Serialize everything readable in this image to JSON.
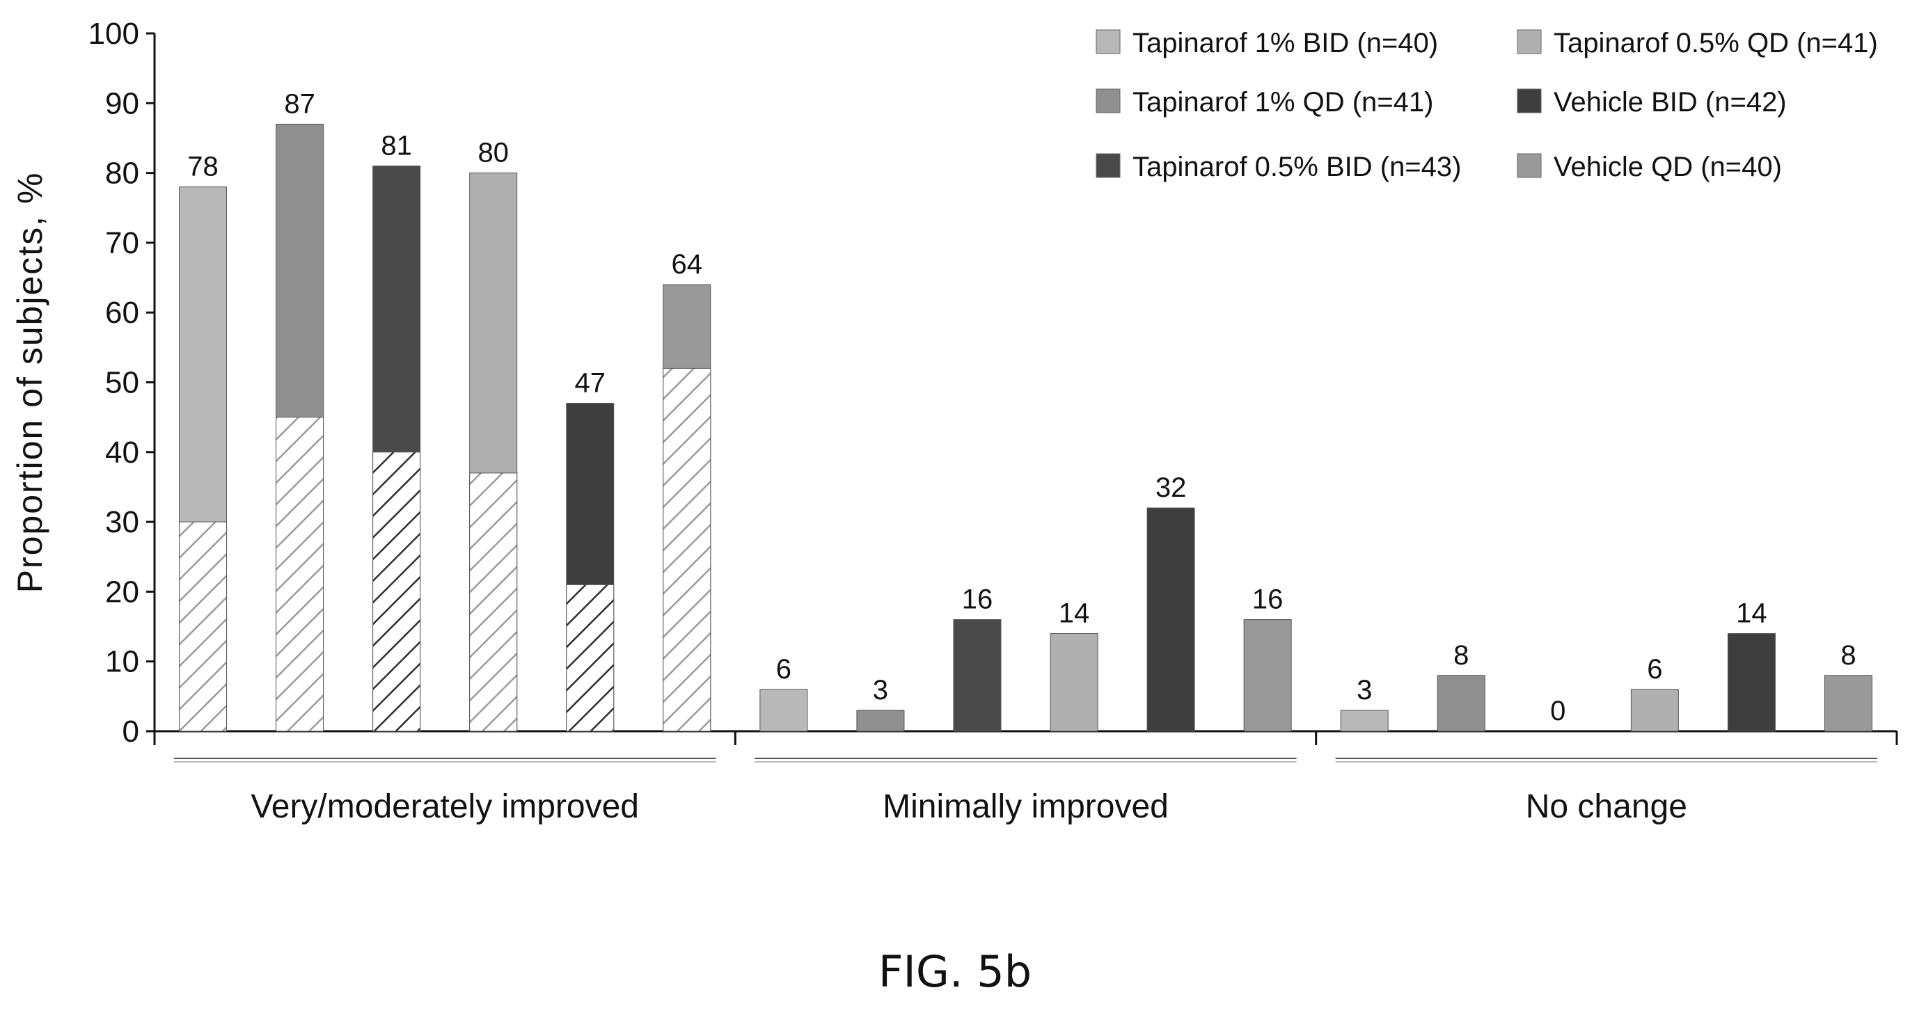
{
  "figure_label": "FIG. 5b",
  "chart_data": {
    "type": "bar",
    "ylabel": "Proportion of subjects, %",
    "xlabel": "",
    "ylim": [
      0,
      100
    ],
    "yticks": [
      0,
      10,
      20,
      30,
      40,
      50,
      60,
      70,
      80,
      90,
      100
    ],
    "grid": false,
    "legend_position": "top-right",
    "categories": [
      "Very/moderately improved",
      "Minimally improved",
      "No change"
    ],
    "series": [
      {
        "name": "Tapinarof 1% BID (n=40)",
        "color": "#b8b8b8",
        "values": [
          78,
          6,
          3
        ],
        "hatched_portion": [
          30,
          null,
          null
        ]
      },
      {
        "name": "Tapinarof 1% QD (n=41)",
        "color": "#8f8f8f",
        "values": [
          87,
          3,
          8
        ],
        "hatched_portion": [
          45,
          null,
          null
        ]
      },
      {
        "name": "Tapinarof 0.5% BID (n=43)",
        "color": "#4a4a4a",
        "values": [
          81,
          16,
          0
        ],
        "hatched_portion": [
          40,
          null,
          null
        ]
      },
      {
        "name": "Tapinarof 0.5% QD (n=41)",
        "color": "#b0b0b0",
        "values": [
          80,
          14,
          6
        ],
        "hatched_portion": [
          37,
          null,
          null
        ]
      },
      {
        "name": "Vehicle BID (n=42)",
        "color": "#3e3e3e",
        "values": [
          47,
          32,
          14
        ],
        "hatched_portion": [
          21,
          null,
          null
        ]
      },
      {
        "name": "Vehicle QD (n=40)",
        "color": "#999999",
        "values": [
          64,
          16,
          8
        ],
        "hatched_portion": [
          52,
          null,
          null
        ]
      }
    ],
    "data_labels": [
      [
        "78",
        "87",
        "81",
        "80",
        "47",
        "64"
      ],
      [
        "6",
        "3",
        "16",
        "14",
        "32",
        "16"
      ],
      [
        "3",
        "8",
        "0",
        "6",
        "14",
        "8"
      ]
    ]
  }
}
